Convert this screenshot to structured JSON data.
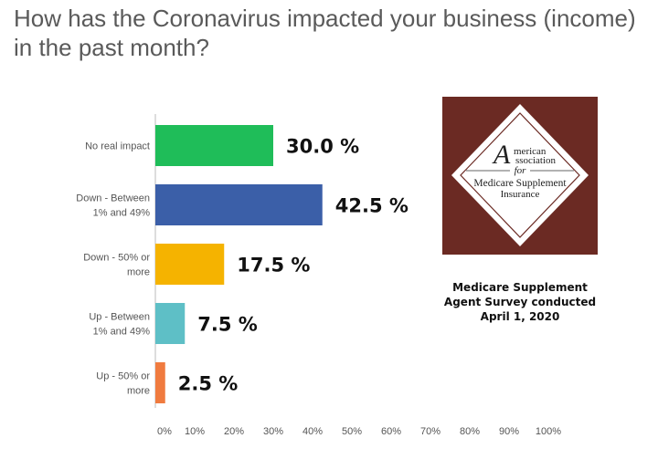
{
  "question": "How has the Coronavirus impacted your business (income) in the past month?",
  "chart_data": {
    "type": "bar",
    "orientation": "horizontal",
    "categories": [
      [
        "No real impact"
      ],
      [
        "Down - Between",
        "1% and 49%"
      ],
      [
        "Down - 50% or",
        "more"
      ],
      [
        "Up - Between",
        "1% and 49%"
      ],
      [
        "Up - 50% or",
        "more"
      ]
    ],
    "values": [
      30.0,
      42.5,
      17.5,
      7.5,
      2.5
    ],
    "value_labels": [
      "30.0 %",
      "42.5 %",
      "17.5 %",
      "7.5 %",
      "2.5 %"
    ],
    "colors": [
      "#1fbd59",
      "#3b5fa8",
      "#f5b300",
      "#5ebfc6",
      "#f07b3f"
    ],
    "xlim": [
      0,
      100
    ],
    "ticks": [
      "0%",
      "10%",
      "20%",
      "30%",
      "40%",
      "50%",
      "60%",
      "70%",
      "80%",
      "90%",
      "100%"
    ],
    "grid": false,
    "legend": "none"
  },
  "logo": {
    "lines": [
      "merican",
      "ssociation",
      "for",
      "Medicare Supplement",
      "Insurance"
    ],
    "initials": [
      "A",
      "A"
    ],
    "background_color": "#6b2a23"
  },
  "caption": {
    "lines": [
      "Medicare Supplement",
      "Agent Survey conducted",
      "April 1, 2020"
    ]
  }
}
